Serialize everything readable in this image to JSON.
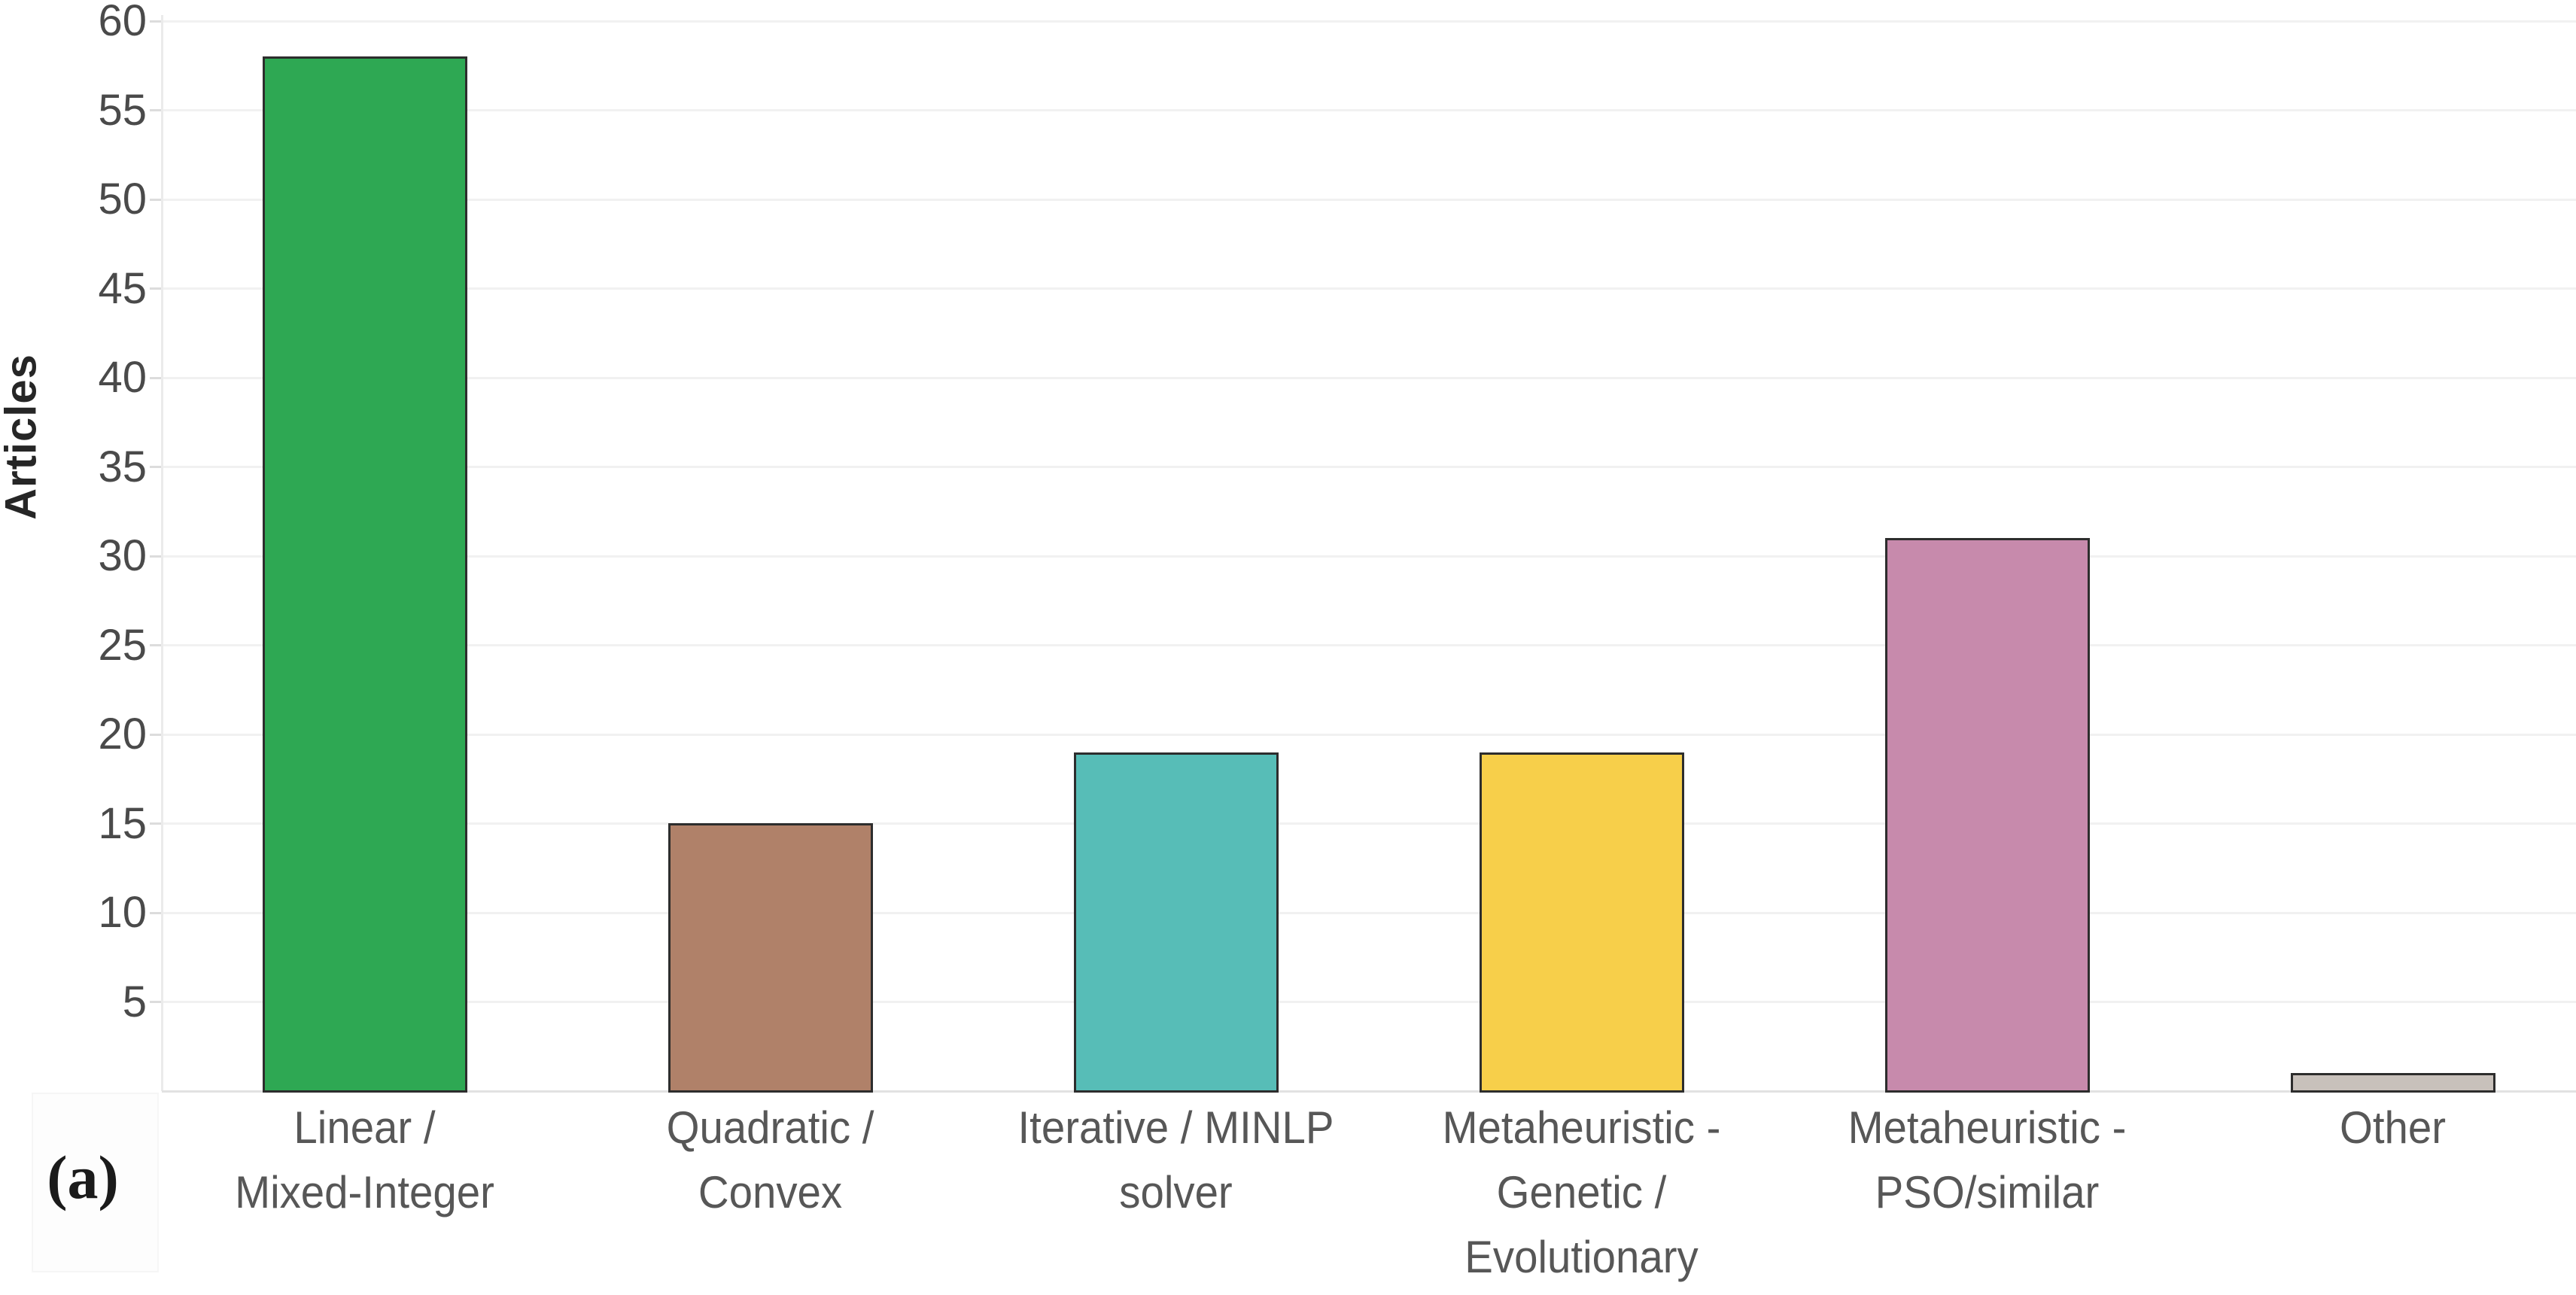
{
  "figure": {
    "panel_label": "(a)"
  },
  "chart_data": {
    "type": "bar",
    "title": "",
    "xlabel": "",
    "ylabel": "Articles",
    "ylim": [
      0,
      61
    ],
    "yticks": [
      5,
      10,
      15,
      20,
      25,
      30,
      35,
      40,
      45,
      50,
      55,
      60
    ],
    "grid": true,
    "legend": false,
    "categories": [
      "Linear / Mixed-Integer",
      "Quadratic / Convex",
      "Iterative / MINLP solver",
      "Metaheuristic - Genetic / Evolutionary",
      "Metaheuristic - PSO/similar",
      "Other"
    ],
    "category_lines": [
      [
        "Linear /",
        "Mixed-Integer"
      ],
      [
        "Quadratic /",
        "Convex"
      ],
      [
        "Iterative / MINLP",
        "solver"
      ],
      [
        "Metaheuristic -",
        "Genetic /",
        "Evolutionary"
      ],
      [
        "Metaheuristic -",
        "PSO/similar"
      ],
      [
        "Other"
      ]
    ],
    "values": [
      58,
      15,
      19,
      19,
      31,
      1
    ],
    "bar_colors": [
      "#2EA853",
      "#B08169",
      "#57BDB7",
      "#F7CF4A",
      "#C78AAC",
      "#C8C1BB"
    ],
    "bar_border_color": "#2d2d2d",
    "gridline_color": "#f1f1f1",
    "tick_label_color": "#4a4a4a",
    "category_label_color": "#575757"
  }
}
